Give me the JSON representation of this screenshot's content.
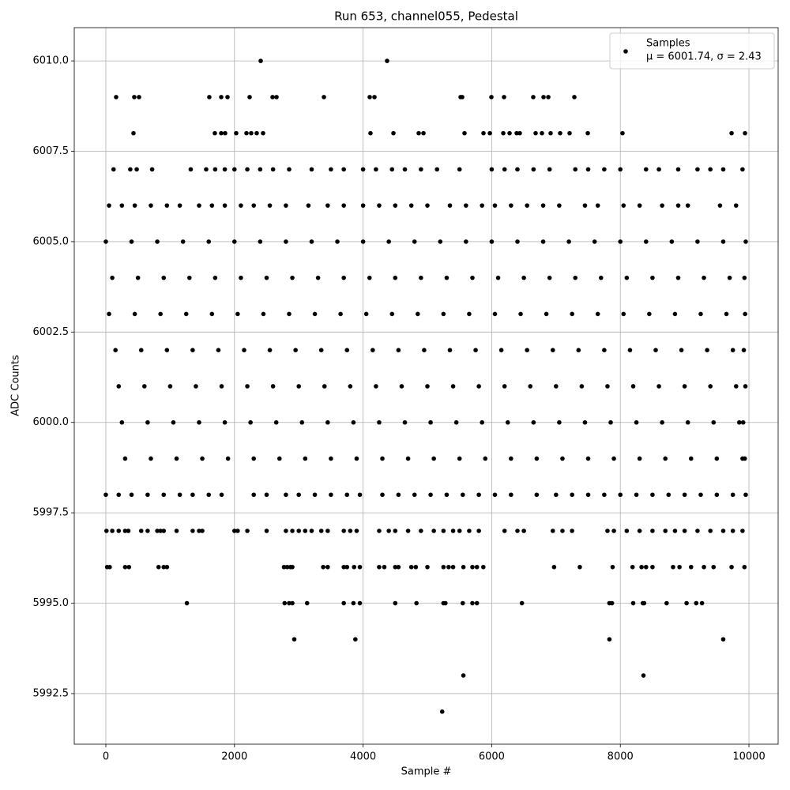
{
  "chart_data": {
    "type": "scatter",
    "title": "Run 653, channel055, Pedestal",
    "xlabel": "Sample #",
    "ylabel": "ADC Counts",
    "legend": "upper right",
    "legend_note": "μ = 6001.74, σ = 2.43",
    "grid": true,
    "xlim": [
      -491,
      10454
    ],
    "ylim": [
      5991.1,
      6010.92
    ],
    "xticks": [
      0,
      2000,
      4000,
      6000,
      8000,
      10000
    ],
    "yticks": [
      5992.5,
      {
        "value": 5995,
        "label": "5995.0"
      },
      5997.5,
      {
        "value": 6000,
        "label": "6000.0"
      },
      6002.5,
      {
        "value": 6005,
        "label": "6005.0"
      },
      6007.5,
      {
        "value": 6010,
        "label": "6010.0"
      }
    ],
    "series": [
      {
        "name": "Samples",
        "color": "#000000",
        "x": [
          2408,
          4373,
          160,
          442,
          516,
          1609,
          1794,
          1892,
          2236,
          2592,
          2654,
          3391,
          4103,
          4177,
          5516,
          5541,
          5995,
          6192,
          6646,
          6806,
          6880,
          7285,
          430,
          1695,
          1794,
          1855,
          2027,
          2187,
          2260,
          2346,
          2445,
          4115,
          4472,
          4865,
          4939,
          5577,
          5872,
          5971,
          6180,
          6278,
          6388,
          6437,
          6683,
          6781,
          6916,
          7064,
          7211,
          7494,
          8034,
          9730,
          9939,
          120,
          380,
          480,
          720,
          1320,
          1560,
          1700,
          1850,
          2000,
          2200,
          2400,
          2600,
          2850,
          3200,
          3500,
          3700,
          4000,
          4200,
          4450,
          4650,
          4900,
          5150,
          5500,
          6000,
          6200,
          6400,
          6650,
          6900,
          7300,
          7500,
          7750,
          8000,
          8400,
          8600,
          8900,
          9200,
          9400,
          9600,
          9900,
          50,
          250,
          450,
          700,
          950,
          1150,
          1450,
          1650,
          1850,
          2100,
          2300,
          2550,
          2800,
          3150,
          3450,
          3700,
          4000,
          4250,
          4500,
          4750,
          5000,
          5350,
          5600,
          5850,
          6050,
          6300,
          6550,
          6800,
          7050,
          7450,
          7650,
          8050,
          8300,
          8650,
          8900,
          9050,
          9550,
          9800,
          0,
          400,
          800,
          1200,
          1600,
          2000,
          2400,
          2800,
          3200,
          3600,
          4000,
          4400,
          4800,
          5200,
          5600,
          6000,
          6400,
          6800,
          7200,
          7600,
          8000,
          8400,
          8800,
          9200,
          9600,
          9950,
          100,
          500,
          900,
          1300,
          1700,
          2100,
          2500,
          2900,
          3300,
          3700,
          4100,
          4500,
          4900,
          5300,
          5700,
          6100,
          6500,
          6900,
          7300,
          7700,
          8100,
          8500,
          8900,
          9300,
          9700,
          9930,
          50,
          450,
          850,
          1250,
          1650,
          2050,
          2450,
          2850,
          3250,
          3650,
          4050,
          4450,
          4850,
          5250,
          5650,
          6050,
          6450,
          6850,
          7250,
          7650,
          8050,
          8450,
          8850,
          9250,
          9650,
          9940,
          150,
          550,
          950,
          1350,
          1750,
          2150,
          2550,
          2950,
          3350,
          3750,
          4150,
          4550,
          4950,
          5350,
          5750,
          6150,
          6550,
          6950,
          7350,
          7750,
          8150,
          8550,
          8950,
          9350,
          9750,
          9920,
          200,
          600,
          1000,
          1400,
          1800,
          2200,
          2600,
          3000,
          3400,
          3800,
          4200,
          4600,
          5000,
          5400,
          5800,
          6200,
          6600,
          7000,
          7400,
          7800,
          8200,
          8600,
          9000,
          9400,
          9800,
          9945,
          250,
          650,
          1050,
          1450,
          1850,
          2250,
          2650,
          3050,
          3450,
          3850,
          4250,
          4650,
          5050,
          5450,
          5850,
          6250,
          6650,
          7050,
          7450,
          7850,
          8250,
          8650,
          9050,
          9450,
          9850,
          9910,
          300,
          700,
          1100,
          1500,
          1900,
          2300,
          2700,
          3100,
          3500,
          3900,
          4300,
          4700,
          5100,
          5500,
          5900,
          6300,
          6700,
          7100,
          7500,
          7900,
          8300,
          8700,
          9100,
          9500,
          9900,
          9935,
          0,
          200,
          400,
          650,
          900,
          1150,
          1350,
          1600,
          1800,
          2300,
          2500,
          2800,
          3000,
          3250,
          3500,
          3750,
          3950,
          4300,
          4550,
          4800,
          5050,
          5300,
          5550,
          5800,
          6050,
          6300,
          6700,
          7000,
          7250,
          7500,
          7750,
          8000,
          8250,
          8500,
          8750,
          9000,
          9250,
          9500,
          9750,
          9950,
          10,
          100,
          200,
          300,
          350,
          550,
          650,
          800,
          850,
          900,
          1100,
          1350,
          1450,
          1500,
          2000,
          2050,
          2200,
          2500,
          2800,
          2900,
          3000,
          3100,
          3200,
          3350,
          3450,
          3700,
          3800,
          3900,
          4250,
          4400,
          4500,
          4700,
          4900,
          5100,
          5250,
          5400,
          5500,
          5650,
          5800,
          6200,
          6400,
          6500,
          6950,
          7100,
          7250,
          7800,
          7900,
          8100,
          8300,
          8500,
          8700,
          8850,
          9000,
          9200,
          9400,
          9600,
          9750,
          9900,
          20,
          60,
          300,
          360,
          820,
          900,
          950,
          2770,
          2820,
          2870,
          2900,
          3380,
          3450,
          3700,
          3750,
          3860,
          3950,
          4250,
          4330,
          4500,
          4550,
          4750,
          4820,
          5000,
          5250,
          5330,
          5400,
          5560,
          5700,
          5770,
          5870,
          6970,
          7370,
          7880,
          8190,
          8330,
          8400,
          8500,
          8820,
          8920,
          9100,
          9300,
          9450,
          9730,
          9930,
          1260,
          2780,
          2850,
          2900,
          3130,
          3700,
          3850,
          3950,
          4500,
          4830,
          5250,
          5280,
          5550,
          5700,
          5770,
          6470,
          7830,
          7870,
          8200,
          8350,
          8370,
          8720,
          9030,
          9180,
          9270,
          2930,
          3880,
          7830,
          9600,
          5560,
          8360,
          5230
        ],
        "values": [
          6010,
          6010,
          6009,
          6009,
          6009,
          6009,
          6009,
          6009,
          6009,
          6009,
          6009,
          6009,
          6009,
          6009,
          6009,
          6009,
          6009,
          6009,
          6009,
          6009,
          6009,
          6009,
          6008,
          6008,
          6008,
          6008,
          6008,
          6008,
          6008,
          6008,
          6008,
          6008,
          6008,
          6008,
          6008,
          6008,
          6008,
          6008,
          6008,
          6008,
          6008,
          6008,
          6008,
          6008,
          6008,
          6008,
          6008,
          6008,
          6008,
          6008,
          6008,
          6007,
          6007,
          6007,
          6007,
          6007,
          6007,
          6007,
          6007,
          6007,
          6007,
          6007,
          6007,
          6007,
          6007,
          6007,
          6007,
          6007,
          6007,
          6007,
          6007,
          6007,
          6007,
          6007,
          6007,
          6007,
          6007,
          6007,
          6007,
          6007,
          6007,
          6007,
          6007,
          6007,
          6007,
          6007,
          6007,
          6007,
          6007,
          6007,
          6006,
          6006,
          6006,
          6006,
          6006,
          6006,
          6006,
          6006,
          6006,
          6006,
          6006,
          6006,
          6006,
          6006,
          6006,
          6006,
          6006,
          6006,
          6006,
          6006,
          6006,
          6006,
          6006,
          6006,
          6006,
          6006,
          6006,
          6006,
          6006,
          6006,
          6006,
          6006,
          6006,
          6006,
          6006,
          6006,
          6006,
          6006,
          6005,
          6005,
          6005,
          6005,
          6005,
          6005,
          6005,
          6005,
          6005,
          6005,
          6005,
          6005,
          6005,
          6005,
          6005,
          6005,
          6005,
          6005,
          6005,
          6005,
          6005,
          6005,
          6005,
          6005,
          6005,
          6005,
          6004,
          6004,
          6004,
          6004,
          6004,
          6004,
          6004,
          6004,
          6004,
          6004,
          6004,
          6004,
          6004,
          6004,
          6004,
          6004,
          6004,
          6004,
          6004,
          6004,
          6004,
          6004,
          6004,
          6004,
          6004,
          6004,
          6003,
          6003,
          6003,
          6003,
          6003,
          6003,
          6003,
          6003,
          6003,
          6003,
          6003,
          6003,
          6003,
          6003,
          6003,
          6003,
          6003,
          6003,
          6003,
          6003,
          6003,
          6003,
          6003,
          6003,
          6003,
          6003,
          6002,
          6002,
          6002,
          6002,
          6002,
          6002,
          6002,
          6002,
          6002,
          6002,
          6002,
          6002,
          6002,
          6002,
          6002,
          6002,
          6002,
          6002,
          6002,
          6002,
          6002,
          6002,
          6002,
          6002,
          6002,
          6002,
          6001,
          6001,
          6001,
          6001,
          6001,
          6001,
          6001,
          6001,
          6001,
          6001,
          6001,
          6001,
          6001,
          6001,
          6001,
          6001,
          6001,
          6001,
          6001,
          6001,
          6001,
          6001,
          6001,
          6001,
          6001,
          6001,
          6000,
          6000,
          6000,
          6000,
          6000,
          6000,
          6000,
          6000,
          6000,
          6000,
          6000,
          6000,
          6000,
          6000,
          6000,
          6000,
          6000,
          6000,
          6000,
          6000,
          6000,
          6000,
          6000,
          6000,
          6000,
          6000,
          5999,
          5999,
          5999,
          5999,
          5999,
          5999,
          5999,
          5999,
          5999,
          5999,
          5999,
          5999,
          5999,
          5999,
          5999,
          5999,
          5999,
          5999,
          5999,
          5999,
          5999,
          5999,
          5999,
          5999,
          5999,
          5999,
          5998,
          5998,
          5998,
          5998,
          5998,
          5998,
          5998,
          5998,
          5998,
          5998,
          5998,
          5998,
          5998,
          5998,
          5998,
          5998,
          5998,
          5998,
          5998,
          5998,
          5998,
          5998,
          5998,
          5998,
          5998,
          5998,
          5998,
          5998,
          5998,
          5998,
          5998,
          5998,
          5998,
          5998,
          5998,
          5998,
          5998,
          5998,
          5998,
          5998,
          5997,
          5997,
          5997,
          5997,
          5997,
          5997,
          5997,
          5997,
          5997,
          5997,
          5997,
          5997,
          5997,
          5997,
          5997,
          5997,
          5997,
          5997,
          5997,
          5997,
          5997,
          5997,
          5997,
          5997,
          5997,
          5997,
          5997,
          5997,
          5997,
          5997,
          5997,
          5997,
          5997,
          5997,
          5997,
          5997,
          5997,
          5997,
          5997,
          5997,
          5997,
          5997,
          5997,
          5997,
          5997,
          5997,
          5997,
          5997,
          5997,
          5997,
          5997,
          5997,
          5997,
          5997,
          5997,
          5997,
          5997,
          5997,
          5996,
          5996,
          5996,
          5996,
          5996,
          5996,
          5996,
          5996,
          5996,
          5996,
          5996,
          5996,
          5996,
          5996,
          5996,
          5996,
          5996,
          5996,
          5996,
          5996,
          5996,
          5996,
          5996,
          5996,
          5996,
          5996,
          5996,
          5996,
          5996,
          5996,
          5996,
          5996,
          5996,
          5996,
          5996,
          5996,
          5996,
          5996,
          5996,
          5996,
          5996,
          5996,
          5996,
          5996,
          5996,
          5995,
          5995,
          5995,
          5995,
          5995,
          5995,
          5995,
          5995,
          5995,
          5995,
          5995,
          5995,
          5995,
          5995,
          5995,
          5995,
          5995,
          5995,
          5995,
          5995,
          5995,
          5995,
          5995,
          5995,
          5995,
          5994,
          5994,
          5994,
          5994,
          5993,
          5993,
          5992
        ]
      }
    ]
  }
}
